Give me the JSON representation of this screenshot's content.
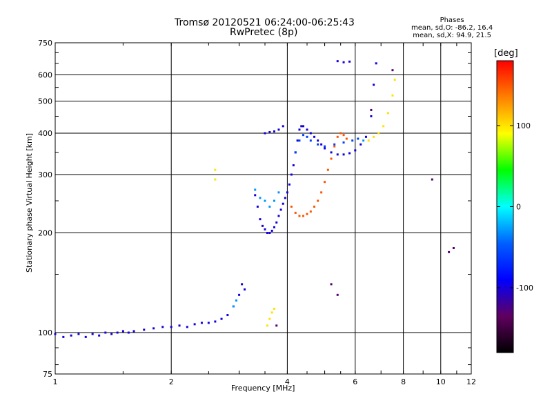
{
  "title_line1": "Tromsø 20120521 06:24:00-06:25:43",
  "title_line2": "RwPretec (8p)",
  "phases": {
    "heading": "Phases",
    "line1": "mean, sd,O: -86.2, 16.4",
    "line2": "mean, sd,X:  94.9, 21.5"
  },
  "colorbar": {
    "unit": "[deg]",
    "ticks": [
      "100",
      "0",
      "-100"
    ],
    "tick_values": [
      100,
      0,
      -100
    ],
    "range": [
      -180,
      180
    ],
    "colors": [
      "#ff0000",
      "#ff8000",
      "#ffff00",
      "#00ff00",
      "#00ffff",
      "#0060ff",
      "#0000ff",
      "#600060",
      "#000000"
    ]
  },
  "chart_data": {
    "type": "scatter",
    "xlabel": "Frequency [MHz]",
    "ylabel": "Stationary phase Virtual Height [km]",
    "xscale": "log",
    "yscale": "log",
    "xlim": [
      1,
      12
    ],
    "ylim": [
      75,
      750
    ],
    "grid": true,
    "xticks": [
      1,
      2,
      4,
      6,
      8,
      10,
      12
    ],
    "xtick_labels": [
      "1",
      "2",
      "4",
      "6",
      "8",
      "10",
      "12"
    ],
    "xgrid": [
      2,
      4,
      6,
      8,
      10
    ],
    "yticks": [
      75,
      100,
      200,
      300,
      400,
      500,
      600,
      750
    ],
    "ytick_labels": [
      "75",
      "100",
      "200",
      "300",
      "400",
      "500",
      "600",
      "750"
    ],
    "ygrid": [
      100,
      200,
      300,
      400,
      500,
      600
    ],
    "point_groups": [
      {
        "phase": -100,
        "points": [
          [
            1.0,
            99
          ],
          [
            1.05,
            97
          ],
          [
            1.1,
            98
          ],
          [
            1.15,
            99
          ],
          [
            1.2,
            97
          ],
          [
            1.25,
            99
          ],
          [
            1.3,
            98
          ],
          [
            1.35,
            100
          ],
          [
            1.4,
            99
          ],
          [
            1.45,
            100
          ],
          [
            1.5,
            101
          ],
          [
            1.55,
            100
          ],
          [
            1.6,
            101
          ],
          [
            1.7,
            102
          ],
          [
            1.8,
            103
          ],
          [
            1.9,
            104
          ],
          [
            2.0,
            104
          ],
          [
            2.1,
            105
          ],
          [
            2.2,
            104
          ],
          [
            2.3,
            106
          ],
          [
            2.4,
            107
          ],
          [
            2.5,
            107
          ],
          [
            2.6,
            108
          ],
          [
            2.7,
            110
          ],
          [
            2.8,
            113
          ],
          [
            2.9,
            120
          ],
          [
            3.0,
            130
          ],
          [
            3.05,
            140
          ],
          [
            3.1,
            135
          ]
        ]
      },
      {
        "phase": -100,
        "points": [
          [
            3.3,
            260
          ],
          [
            3.35,
            240
          ],
          [
            3.4,
            220
          ],
          [
            3.45,
            210
          ],
          [
            3.5,
            205
          ],
          [
            3.55,
            200
          ],
          [
            3.6,
            200
          ],
          [
            3.65,
            203
          ],
          [
            3.7,
            208
          ],
          [
            3.75,
            215
          ],
          [
            3.8,
            225
          ],
          [
            3.85,
            235
          ],
          [
            3.9,
            245
          ],
          [
            3.95,
            255
          ],
          [
            4.0,
            265
          ],
          [
            4.05,
            280
          ],
          [
            4.1,
            300
          ],
          [
            4.15,
            320
          ],
          [
            4.2,
            350
          ],
          [
            4.25,
            380
          ],
          [
            4.3,
            410
          ],
          [
            4.35,
            420
          ],
          [
            4.4,
            420
          ],
          [
            4.5,
            410
          ],
          [
            4.6,
            400
          ],
          [
            4.7,
            390
          ],
          [
            4.8,
            380
          ],
          [
            4.9,
            370
          ],
          [
            5.0,
            360
          ],
          [
            5.2,
            350
          ],
          [
            5.4,
            345
          ],
          [
            5.6,
            345
          ],
          [
            5.8,
            348
          ],
          [
            6.0,
            355
          ],
          [
            6.2,
            370
          ],
          [
            6.4,
            390
          ],
          [
            6.6,
            450
          ],
          [
            6.7,
            560
          ],
          [
            6.8,
            650
          ]
        ]
      },
      {
        "phase": -100,
        "points": [
          [
            3.5,
            400
          ],
          [
            3.6,
            403
          ],
          [
            3.7,
            405
          ],
          [
            3.8,
            410
          ],
          [
            3.9,
            420
          ],
          [
            5.4,
            660
          ],
          [
            5.6,
            655
          ],
          [
            5.8,
            658
          ]
        ]
      },
      {
        "phase": -60,
        "points": [
          [
            4.2,
            350
          ],
          [
            4.3,
            380
          ],
          [
            4.4,
            395
          ],
          [
            4.5,
            390
          ],
          [
            4.6,
            380
          ],
          [
            4.8,
            370
          ],
          [
            5.0,
            365
          ],
          [
            5.3,
            370
          ],
          [
            5.6,
            375
          ],
          [
            5.9,
            380
          ],
          [
            6.1,
            385
          ]
        ]
      },
      {
        "phase": -30,
        "points": [
          [
            2.9,
            120
          ],
          [
            2.95,
            125
          ],
          [
            3.3,
            270
          ],
          [
            3.4,
            255
          ],
          [
            3.5,
            250
          ],
          [
            3.6,
            240
          ],
          [
            3.7,
            250
          ],
          [
            3.8,
            265
          ],
          [
            6.3,
            380
          ]
        ]
      },
      {
        "phase": 100,
        "points": [
          [
            3.55,
            105
          ],
          [
            3.6,
            110
          ],
          [
            3.65,
            115
          ],
          [
            3.7,
            118
          ],
          [
            2.6,
            310
          ],
          [
            2.6,
            290
          ],
          [
            6.5,
            380
          ],
          [
            6.7,
            390
          ],
          [
            6.9,
            400
          ],
          [
            7.1,
            420
          ],
          [
            7.3,
            460
          ],
          [
            7.5,
            520
          ],
          [
            7.6,
            580
          ]
        ]
      },
      {
        "phase": 150,
        "points": [
          [
            4.1,
            240
          ],
          [
            4.2,
            230
          ],
          [
            4.3,
            225
          ],
          [
            4.4,
            225
          ],
          [
            4.5,
            228
          ],
          [
            4.6,
            232
          ],
          [
            4.7,
            240
          ],
          [
            4.8,
            250
          ],
          [
            4.9,
            265
          ],
          [
            5.0,
            285
          ],
          [
            5.1,
            310
          ],
          [
            5.2,
            335
          ],
          [
            5.3,
            365
          ],
          [
            5.4,
            390
          ],
          [
            5.5,
            400
          ],
          [
            5.6,
            395
          ],
          [
            5.7,
            385
          ]
        ]
      },
      {
        "phase": -130,
        "points": [
          [
            3.75,
            105
          ],
          [
            5.4,
            130
          ],
          [
            5.2,
            140
          ],
          [
            6.6,
            470
          ],
          [
            7.5,
            620
          ],
          [
            9.5,
            290
          ],
          [
            10.5,
            175
          ],
          [
            10.8,
            180
          ]
        ]
      }
    ]
  }
}
